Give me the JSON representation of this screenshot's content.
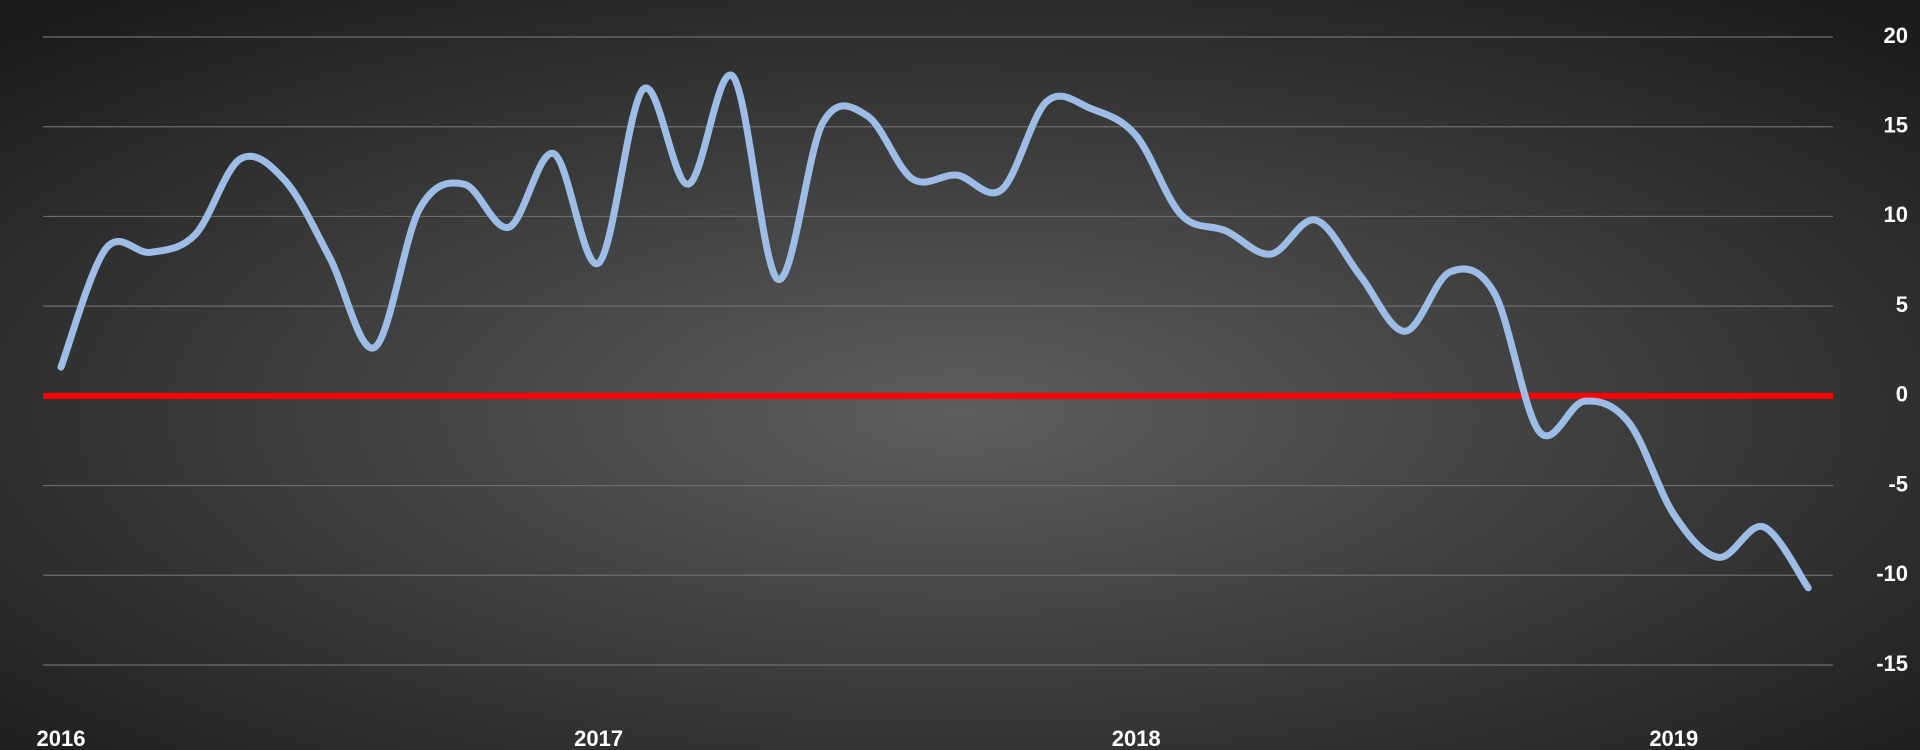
{
  "chart_data": {
    "type": "line",
    "categories": [
      "2016",
      null,
      null,
      null,
      null,
      null,
      null,
      null,
      null,
      null,
      null,
      null,
      "2017",
      null,
      null,
      null,
      null,
      null,
      null,
      null,
      null,
      null,
      null,
      null,
      "2018",
      null,
      null,
      null,
      null,
      null,
      null,
      null,
      null,
      null,
      null,
      null,
      "2019",
      null,
      null,
      null
    ],
    "series": [
      {
        "color": "#9dbde6",
        "values": [
          1.6,
          8.2,
          8.0,
          9.0,
          13.2,
          12.0,
          7.7,
          2.7,
          10.4,
          11.8,
          9.4,
          13.5,
          7.4,
          17.1,
          11.8,
          17.8,
          6.5,
          15.2,
          15.6,
          12.1,
          12.3,
          11.5,
          16.4,
          16.0,
          14.5,
          10.1,
          9.2,
          7.9,
          9.8,
          6.7,
          3.6,
          6.9,
          5.7,
          -2.0,
          -0.3,
          -1.5,
          -6.6,
          -9.0,
          -7.3,
          -10.7
        ]
      }
    ],
    "ylim": [
      -15,
      20
    ],
    "yticks": [
      -15,
      -10,
      -5,
      0,
      5,
      10,
      15,
      20
    ],
    "grid": true,
    "reference_line": {
      "value": 0,
      "color": "#ff0000"
    }
  }
}
